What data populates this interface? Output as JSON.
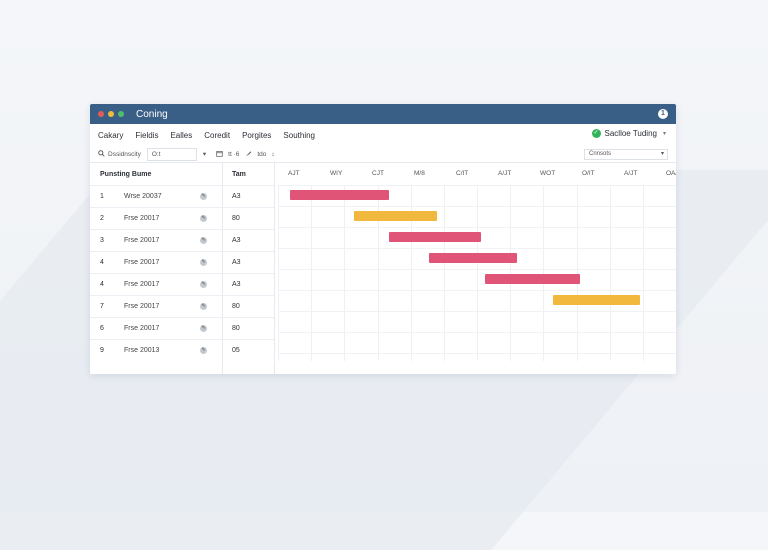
{
  "window": {
    "title": "Coning"
  },
  "titlebar_dots": [
    "#e25c5c",
    "#f0bc3c",
    "#4fc06a"
  ],
  "help_button": {
    "label": "1"
  },
  "menu": [
    "Cakary",
    "Fieldis",
    "Ealles",
    "Coredit",
    "Porgites",
    "Southing"
  ],
  "status_chip": {
    "icon": "check-circle-icon",
    "label": "Saclloe Tuding",
    "caret": "▾"
  },
  "toolbar": {
    "search_icon": "search-icon",
    "search_label": "Dssidnscity",
    "filter_value": "O:t",
    "caret": "▾",
    "tools": [
      {
        "icon": "calendar-icon",
        "label": ""
      },
      {
        "icon": "grid-icon",
        "label": "tt  ·6"
      },
      {
        "icon": "brush-icon",
        "label": ""
      },
      {
        "icon": "settings-icon",
        "label": "tdo"
      },
      {
        "icon": "stepper-icon",
        "label": "↕"
      }
    ],
    "view_select": "Cnnsots"
  },
  "columns": {
    "name_header": "Punsting Bume",
    "team_header": "Tam"
  },
  "timeline_labels": [
    "AJT",
    "WIY",
    "CJT",
    "M/8",
    "C/IT",
    "A/JT",
    "WOT",
    "O/IT",
    "A/JT",
    "OA/P"
  ],
  "rows": [
    {
      "num": "1",
      "name": "Wrse 20037",
      "team": "A3"
    },
    {
      "num": "2",
      "name": "Frse 20017",
      "team": "80"
    },
    {
      "num": "3",
      "name": "Frse 20017",
      "team": "A3"
    },
    {
      "num": "4",
      "name": "Frse 20017",
      "team": "A3"
    },
    {
      "num": "4",
      "name": "Frse 20017",
      "team": "A3"
    },
    {
      "num": "7",
      "name": "Frse 20017",
      "team": "80"
    },
    {
      "num": "6",
      "name": "Frse 20017",
      "team": "80"
    },
    {
      "num": "9",
      "name": "Frse 20013",
      "team": "05"
    }
  ],
  "gantt_bars": [
    {
      "row": 1,
      "start": 0.03,
      "end": 0.28,
      "color": "#e05478"
    },
    {
      "row": 2,
      "start": 0.19,
      "end": 0.4,
      "color": "#f2b83e"
    },
    {
      "row": 3,
      "start": 0.28,
      "end": 0.51,
      "color": "#e05478"
    },
    {
      "row": 4,
      "start": 0.38,
      "end": 0.6,
      "color": "#e05478"
    },
    {
      "row": 5,
      "start": 0.52,
      "end": 0.76,
      "color": "#e05478"
    },
    {
      "row": 6,
      "start": 0.69,
      "end": 0.91,
      "color": "#f2b83e"
    }
  ]
}
